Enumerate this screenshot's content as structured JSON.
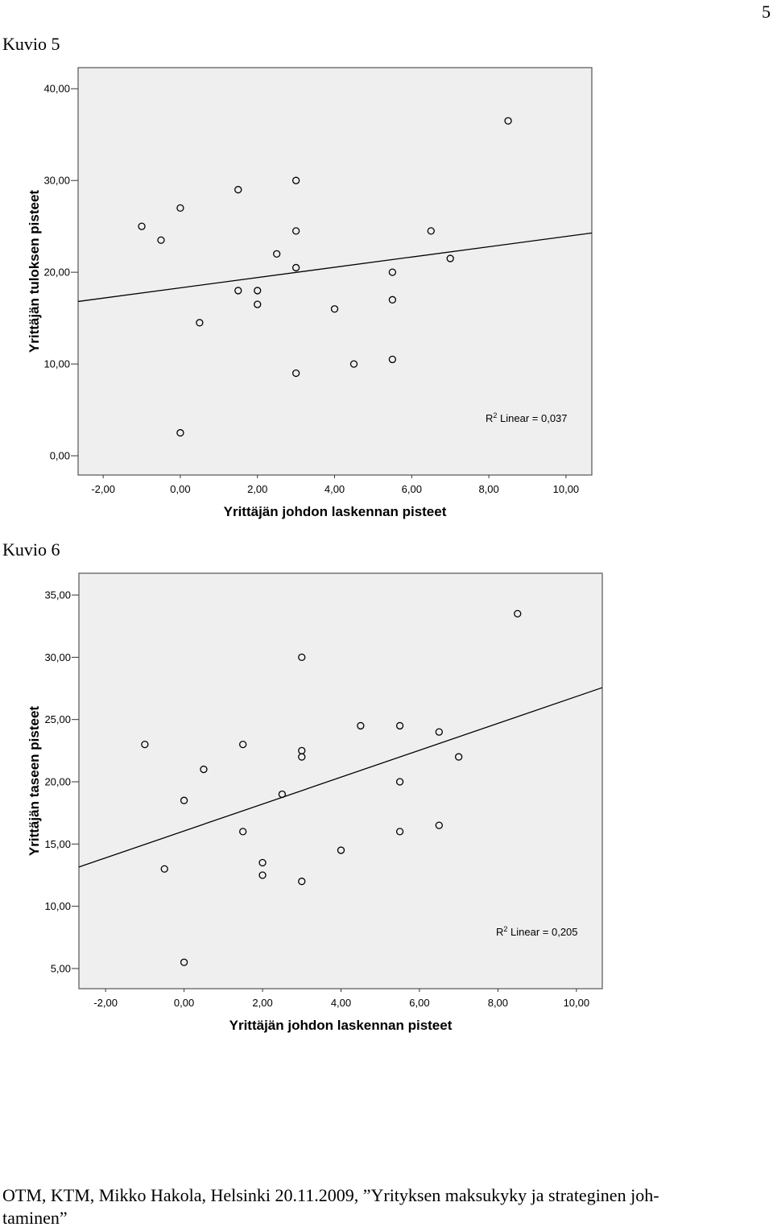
{
  "page_number": "5",
  "captions": [
    "Kuvio 5",
    "Kuvio 6"
  ],
  "footer": [
    "OTM, KTM, Mikko Hakola, Helsinki 20.11.2009, ”Yrityksen maksukyky ja strateginen joh-",
    "taminen”"
  ],
  "chart_data": [
    {
      "type": "scatter",
      "xlabel": "Yrittäjän johdon laskennan pisteet",
      "ylabel": "Yrittäjän tuloksen pisteet",
      "x": [
        -1,
        -0.5,
        0,
        0,
        0.5,
        1.5,
        1.5,
        2,
        2,
        2.5,
        3,
        3,
        3,
        3,
        4,
        4.5,
        5.5,
        5.5,
        5.5,
        6.5,
        7,
        8.5
      ],
      "values": [
        25,
        23.5,
        27,
        2.5,
        14.5,
        29,
        18,
        18,
        16.5,
        22,
        30,
        24.5,
        20.5,
        9,
        16,
        10,
        20,
        17,
        10.5,
        24.5,
        21.5,
        36.5
      ],
      "fit": {
        "intercept": 18.3,
        "slope": 0.56
      },
      "annotation": {
        "base": "R",
        "sup": "2",
        "text": " Linear = 0,037"
      },
      "xlim": [
        -2.65,
        10.67
      ],
      "ylim": [
        -2.1,
        42.3
      ],
      "xticks": [
        {
          "value": -2,
          "label": "-2,00"
        },
        {
          "value": 0,
          "label": "0,00"
        },
        {
          "value": 2,
          "label": "2,00"
        },
        {
          "value": 4,
          "label": "4,00"
        },
        {
          "value": 6,
          "label": "6,00"
        },
        {
          "value": 8,
          "label": "8,00"
        },
        {
          "value": 10,
          "label": "10,00"
        }
      ],
      "yticks": [
        {
          "value": 0,
          "label": "0,00"
        },
        {
          "value": 10,
          "label": "10,00"
        },
        {
          "value": 20,
          "label": "20,00"
        },
        {
          "value": 30,
          "label": "30,00"
        },
        {
          "value": 40,
          "label": "40,00"
        }
      ]
    },
    {
      "type": "scatter",
      "xlabel": "Yrittäjän johdon laskennan pisteet",
      "ylabel": "Yrittäjän taseen pisteet",
      "x": [
        -1,
        -0.5,
        0,
        0,
        0.5,
        1.5,
        1.5,
        2,
        2,
        2.5,
        3,
        3,
        3,
        3,
        4,
        4.5,
        5.5,
        5.5,
        5.5,
        6.5,
        6.5,
        7,
        8.5
      ],
      "values": [
        23,
        13,
        18.5,
        5.5,
        21,
        23,
        16,
        13.5,
        12.5,
        19,
        30,
        22.5,
        22,
        12,
        14.5,
        24.5,
        24.5,
        20,
        16,
        24,
        16.5,
        22,
        33.5
      ],
      "fit": {
        "intercept": 16.05,
        "slope": 1.08
      },
      "annotation": {
        "base": "R",
        "sup": "2",
        "text": " Linear = 0,205"
      },
      "xlim": [
        -2.68,
        10.66
      ],
      "ylim": [
        3.38,
        36.75
      ],
      "xticks": [
        {
          "value": -2,
          "label": "-2,00"
        },
        {
          "value": 0,
          "label": "0,00"
        },
        {
          "value": 2,
          "label": "2,00"
        },
        {
          "value": 4,
          "label": "4,00"
        },
        {
          "value": 6,
          "label": "6,00"
        },
        {
          "value": 8,
          "label": "8,00"
        },
        {
          "value": 10,
          "label": "10,00"
        }
      ],
      "yticks": [
        {
          "value": 5,
          "label": "5,00"
        },
        {
          "value": 10,
          "label": "10,00"
        },
        {
          "value": 15,
          "label": "15,00"
        },
        {
          "value": 20,
          "label": "20,00"
        },
        {
          "value": 25,
          "label": "25,00"
        },
        {
          "value": 30,
          "label": "30,00"
        },
        {
          "value": 35,
          "label": "35,00"
        }
      ]
    }
  ]
}
